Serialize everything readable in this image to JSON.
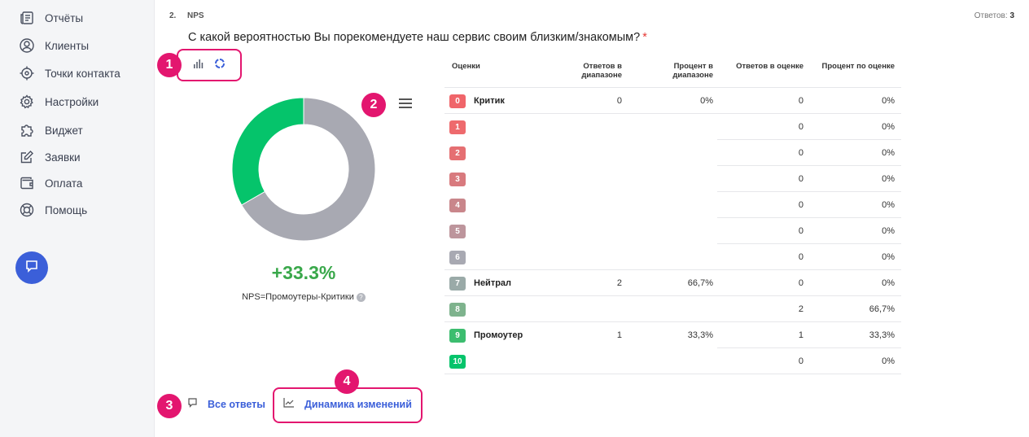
{
  "sidebar": {
    "items": [
      {
        "label": "Отчёты",
        "icon": "reports-icon"
      },
      {
        "label": "Клиенты",
        "icon": "user-icon"
      },
      {
        "label": "Точки контакта",
        "icon": "target-icon"
      },
      {
        "label": "Настройки",
        "icon": "gear-icon"
      },
      {
        "label": "Виджет",
        "icon": "puzzle-icon"
      },
      {
        "label": "Заявки",
        "icon": "edit-icon"
      },
      {
        "label": "Оплата",
        "icon": "wallet-icon"
      },
      {
        "label": "Помощь",
        "icon": "lifebuoy-icon"
      }
    ]
  },
  "question": {
    "number": "2.",
    "type": "NPS",
    "answers_label": "Ответов:",
    "answers_count": "3",
    "title": "С какой вероятностью Вы порекомендуете наш сервис своим близким/знакомым?",
    "required_mark": "*"
  },
  "badges": [
    "1",
    "2",
    "3",
    "4"
  ],
  "nps": {
    "value": "+33.3%",
    "formula": "NPS=Промоутеры-Критики",
    "help": "?"
  },
  "chart_data": {
    "type": "pie",
    "donut": true,
    "slices": [
      {
        "label": "Промоутер",
        "value": 1,
        "color": "#05c46b"
      },
      {
        "label": "Нейтрал",
        "value": 2,
        "color": "#a8a9b2"
      }
    ]
  },
  "table": {
    "headers": [
      "Оценки",
      "Ответов в диапазоне",
      "Процент в диапазоне",
      "Ответов в оценке",
      "Процент по оценке"
    ],
    "rows": [
      {
        "score": "0",
        "color": "#f0656a",
        "group": "Критик",
        "range_count": "0",
        "range_pct": "0%",
        "count": "0",
        "pct": "0%"
      },
      {
        "score": "1",
        "color": "#ee6a6d",
        "group": "",
        "range_count": "",
        "range_pct": "",
        "count": "0",
        "pct": "0%"
      },
      {
        "score": "2",
        "color": "#e56f72",
        "group": "",
        "range_count": "",
        "range_pct": "",
        "count": "0",
        "pct": "0%"
      },
      {
        "score": "3",
        "color": "#d87a7e",
        "group": "",
        "range_count": "",
        "range_pct": "",
        "count": "0",
        "pct": "0%"
      },
      {
        "score": "4",
        "color": "#c9868b",
        "group": "",
        "range_count": "",
        "range_pct": "",
        "count": "0",
        "pct": "0%"
      },
      {
        "score": "5",
        "color": "#bd959c",
        "group": "",
        "range_count": "",
        "range_pct": "",
        "count": "0",
        "pct": "0%"
      },
      {
        "score": "6",
        "color": "#a8a9b2",
        "group": "",
        "range_count": "",
        "range_pct": "",
        "count": "0",
        "pct": "0%"
      },
      {
        "score": "7",
        "color": "#9aaaa8",
        "group": "Нейтрал",
        "range_count": "2",
        "range_pct": "66,7%",
        "count": "0",
        "pct": "0%"
      },
      {
        "score": "8",
        "color": "#7eb38d",
        "group": "",
        "range_count": "",
        "range_pct": "",
        "count": "2",
        "pct": "66,7%"
      },
      {
        "score": "9",
        "color": "#3cbd6f",
        "group": "Промоутер",
        "range_count": "1",
        "range_pct": "33,3%",
        "count": "1",
        "pct": "33,3%"
      },
      {
        "score": "10",
        "color": "#05c46b",
        "group": "",
        "range_count": "",
        "range_pct": "",
        "count": "0",
        "pct": "0%"
      }
    ]
  },
  "buttons": {
    "all_answers": "Все ответы",
    "dynamics": "Динамика изменений"
  },
  "colors": {
    "accent": "#3b5fd9",
    "highlight": "#e3166f",
    "nps_positive": "#3aa84b"
  }
}
